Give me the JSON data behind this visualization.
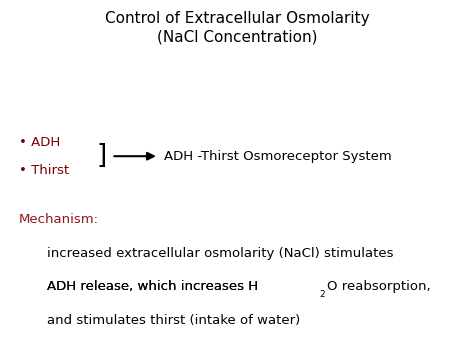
{
  "title_line1": "Control of Extracellular Osmolarity",
  "title_line2": "(NaCl Concentration)",
  "title_color": "#000000",
  "title_fontsize": 11,
  "bullet_color": "#7B0000",
  "bullet_fontsize": 9.5,
  "bracket_color": "#000000",
  "arrow_color": "#000000",
  "system_label": "ADH -Thirst Osmoreceptor System",
  "system_label_fontsize": 9.5,
  "mechanism_label": "Mechanism:",
  "mechanism_color": "#8B1A1A",
  "mechanism_fontsize": 9.5,
  "body_line1": "increased extracellular osmolarity (NaCl) stimulates",
  "body_line2_part1": "ADH release, which increases H",
  "body_line2_sub": "2",
  "body_line2_part2": "O reabsorption,",
  "body_line3": "and stimulates thirst (intake of water)",
  "body_color": "#000000",
  "body_fontsize": 9.5,
  "bg_color": "#ffffff"
}
